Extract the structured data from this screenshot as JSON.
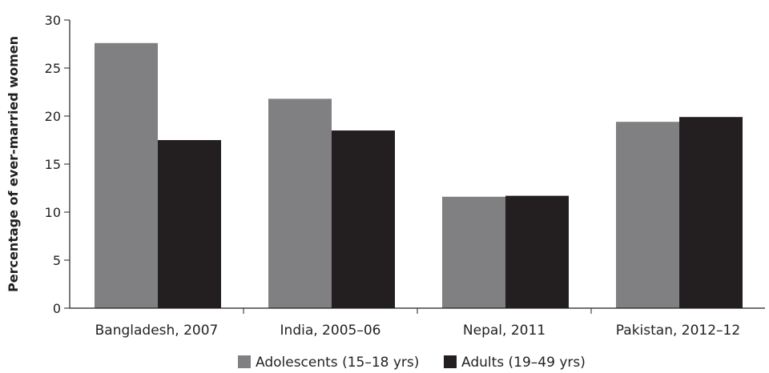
{
  "chart_data": {
    "type": "bar",
    "title": "",
    "xlabel": "",
    "ylabel": "Percentage of ever-married women",
    "ylim": [
      0,
      30
    ],
    "yticks": [
      "0",
      "5",
      "10",
      "15",
      "20",
      "25",
      "30"
    ],
    "grid": false,
    "legend_position": "bottom",
    "categories": [
      "Bangladesh, 2007",
      "India, 2005–06",
      "Nepal, 2011",
      "Pakistan, 2012–12"
    ],
    "series": [
      {
        "name": "Adolescents (15–18 yrs)",
        "color": "#808083",
        "values": [
          27.6,
          21.8,
          11.6,
          19.4
        ]
      },
      {
        "name": "Adults (19–49 yrs)",
        "color": "#231f20",
        "values": [
          17.5,
          18.5,
          11.7,
          19.9
        ]
      }
    ]
  }
}
